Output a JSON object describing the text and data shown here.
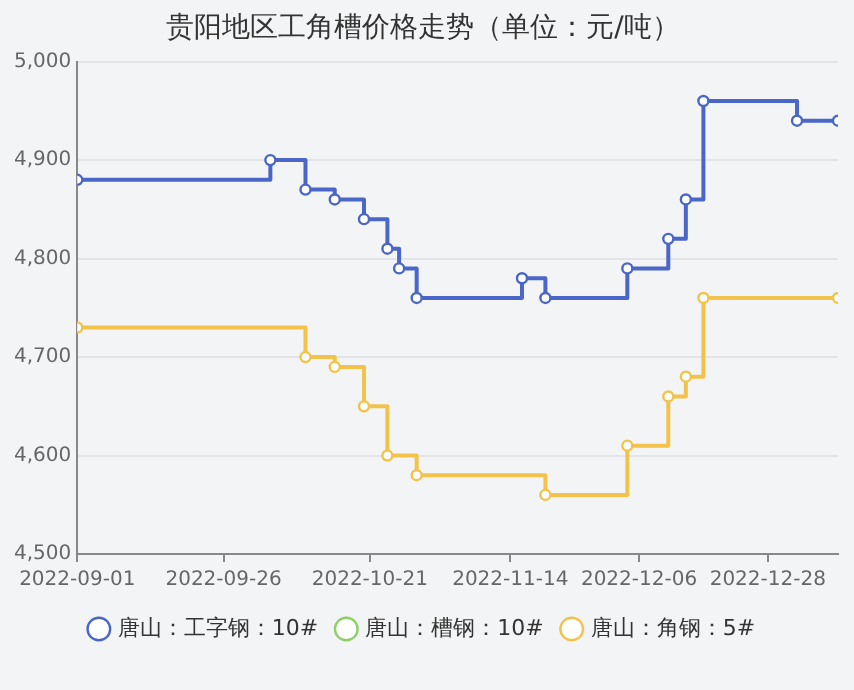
{
  "chart_data": {
    "type": "step",
    "title": "贵阳地区工角槽价格走势（单位：元/吨）",
    "series": [
      {
        "name": "唐山：工字钢：10#",
        "color": "#4a66c7",
        "x": [
          "2022-09-01",
          "2022-10-04",
          "2022-10-10",
          "2022-10-15",
          "2022-10-20",
          "2022-10-24",
          "2022-10-26",
          "2022-10-29",
          "2022-11-16",
          "2022-11-20",
          "2022-12-04",
          "2022-12-11",
          "2022-12-14",
          "2022-12-17",
          "2023-01-02",
          "2023-01-09"
        ],
        "values": [
          4880,
          4900,
          4870,
          4860,
          4840,
          4810,
          4790,
          4760,
          4780,
          4760,
          4790,
          4820,
          4860,
          4960,
          4940,
          4940
        ]
      },
      {
        "name": "唐山：槽钢：10#",
        "color": "#8fcf6a"
      },
      {
        "name": "唐山：角钢：5#",
        "color": "#f2c24a",
        "x": [
          "2022-09-01",
          "2022-10-10",
          "2022-10-15",
          "2022-10-20",
          "2022-10-24",
          "2022-10-29",
          "2022-11-20",
          "2022-12-04",
          "2022-12-11",
          "2022-12-14",
          "2022-12-17",
          "2023-01-09"
        ],
        "values": [
          4730,
          4700,
          4690,
          4650,
          4600,
          4580,
          4560,
          4610,
          4660,
          4680,
          4760,
          4760
        ]
      }
    ],
    "xlim": [
      "2022-09-01",
      "2023-01-09"
    ],
    "xticks": [
      "2022-09-01",
      "2022-09-26",
      "2022-10-21",
      "2022-11-14",
      "2022-12-06",
      "2022-12-28"
    ],
    "ylim": [
      4500,
      5000
    ],
    "yticks": [
      {
        "value": 4500,
        "label": "4,500"
      },
      {
        "value": 4600,
        "label": "4,600"
      },
      {
        "value": 4700,
        "label": "4,700"
      },
      {
        "value": 4800,
        "label": "4,800"
      },
      {
        "value": 4900,
        "label": "4,900"
      },
      {
        "value": 5000,
        "label": "5,000"
      }
    ],
    "grid": "y",
    "legend": "bottom",
    "marker": "circle",
    "line_style": "solid"
  }
}
